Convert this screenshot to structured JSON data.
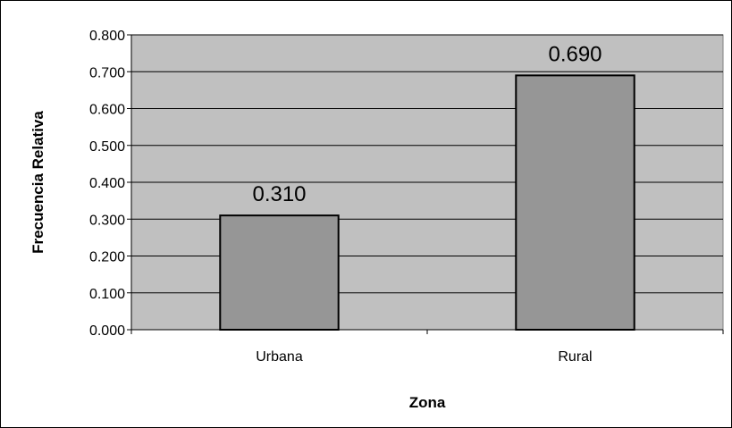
{
  "chart_data": {
    "type": "bar",
    "categories": [
      "Urbana",
      "Rural"
    ],
    "values": [
      0.31,
      0.69
    ],
    "data_labels": [
      "0.310",
      "0.690"
    ],
    "xlabel": "Zona",
    "ylabel": "Frecuencia Relativa",
    "ylim": [
      0,
      0.8
    ],
    "yticks": [
      "0.000",
      "0.100",
      "0.200",
      "0.300",
      "0.400",
      "0.500",
      "0.600",
      "0.700",
      "0.800"
    ],
    "grid": true,
    "legend": "none",
    "colors": {
      "plot_background": "#c0c0c0",
      "bar_fill": "#969696",
      "bar_stroke": "#000000",
      "grid": "#000000"
    }
  }
}
